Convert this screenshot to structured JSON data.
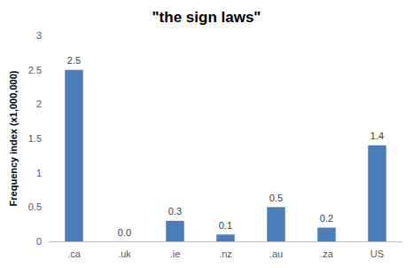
{
  "chart_data": {
    "type": "bar",
    "title": "\"the sign laws\"",
    "y_label": "Frequency index (x1,000,000)",
    "categories": [
      ".ca",
      ".uk",
      ".ie",
      ".nz",
      ".au",
      ".za",
      "US"
    ],
    "values": [
      2.5,
      0,
      0.3,
      0.1,
      0.5,
      0.2,
      1.4
    ],
    "value_labels": [
      "2.5",
      "0.0",
      "0.3",
      "0.1",
      "0.5",
      "0.2",
      "1.4"
    ],
    "color": "#4a7ebb",
    "ylim": [
      0,
      3
    ],
    "yticks": [
      0,
      0.5,
      1,
      1.5,
      2,
      2.5,
      3
    ],
    "grid": false,
    "data_labels": true
  }
}
